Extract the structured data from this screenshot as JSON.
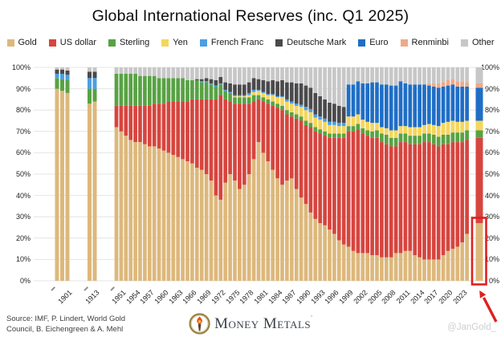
{
  "title": "Global International Reserves (inc. Q1 2025)",
  "footer": {
    "source_line1": "Source: IMF, P. Lindert, World Gold",
    "source_line2": "Council, B. Eichengreen & A. Mehl",
    "logo_text": "Money Metals",
    "logo_mark": "’",
    "handle": "@JanGold_"
  },
  "annotations": {
    "highlight_color": "#e01f1f",
    "highlight_target": "Q1 2025",
    "highlight_from_pct": 0,
    "highlight_to_pct": 29.5
  },
  "chart_data": {
    "type": "bar",
    "subtype": "stacked-100pct",
    "title": "Global International Reserves (inc. Q1 2025)",
    "xlabel": "",
    "ylabel": "",
    "ylim": [
      0,
      100
    ],
    "grid": true,
    "legend_position": "top",
    "y_ticks": [
      "0%",
      "10%",
      "20%",
      "30%",
      "40%",
      "50%",
      "60%",
      "70%",
      "80%",
      "90%",
      "100%"
    ],
    "x_tick_labels": [
      "1901",
      "1913",
      "1951",
      "1954",
      "1957",
      "1960",
      "1963",
      "1966",
      "1969",
      "1972",
      "1975",
      "1978",
      "1981",
      "1984",
      "1987",
      "1990",
      "1993",
      "1996",
      "1999",
      "2002",
      "2005",
      "2008",
      "2011",
      "2014",
      "2017",
      "2020",
      "2023"
    ],
    "x_minor_ticks": [
      "1899",
      "1912",
      "1950"
    ],
    "categories": [
      "1899",
      "1900",
      "1901",
      "1912",
      "1913",
      "1950",
      "1951",
      "1952",
      "1953",
      "1954",
      "1955",
      "1956",
      "1957",
      "1958",
      "1959",
      "1960",
      "1961",
      "1962",
      "1963",
      "1964",
      "1965",
      "1966",
      "1967",
      "1968",
      "1969",
      "1970",
      "1971",
      "1972",
      "1973",
      "1974",
      "1975",
      "1976",
      "1977",
      "1978",
      "1979",
      "1980",
      "1981",
      "1982",
      "1983",
      "1984",
      "1985",
      "1986",
      "1987",
      "1988",
      "1989",
      "1990",
      "1991",
      "1992",
      "1993",
      "1994",
      "1995",
      "1996",
      "1997",
      "1998",
      "1999",
      "2000",
      "2001",
      "2002",
      "2003",
      "2004",
      "2005",
      "2006",
      "2007",
      "2008",
      "2009",
      "2010",
      "2011",
      "2012",
      "2013",
      "2014",
      "2015",
      "2016",
      "2017",
      "2018",
      "2019",
      "2020",
      "2021",
      "2022",
      "2023",
      "2024",
      "Q1 2025"
    ],
    "series": [
      {
        "name": "Gold",
        "color": "#DDB87C",
        "values": [
          90,
          89,
          88,
          83,
          84,
          72,
          70,
          68,
          66,
          65,
          65,
          64,
          63,
          63,
          62,
          61,
          60,
          59,
          58,
          57,
          56,
          55,
          53,
          52,
          50,
          47,
          40,
          38,
          46,
          50,
          47,
          43,
          45,
          50,
          57,
          65,
          60,
          56,
          52,
          48,
          45,
          47,
          48,
          43,
          39,
          36,
          32,
          29,
          27,
          26,
          24,
          22,
          19,
          17,
          16,
          14,
          13,
          13,
          13,
          12,
          12,
          11,
          11,
          11,
          13,
          13,
          14,
          14,
          12,
          11,
          10,
          10,
          10,
          10,
          12,
          14,
          15,
          16,
          18,
          22,
          27
        ]
      },
      {
        "name": "US dollar",
        "color": "#D6453F",
        "values": [
          0,
          0,
          0,
          0,
          0,
          10,
          12,
          14,
          16,
          17,
          17,
          18,
          19,
          20,
          21,
          22,
          24,
          25,
          26,
          27,
          28,
          30,
          32,
          33,
          35,
          38,
          45,
          49,
          39,
          34,
          36,
          40,
          38,
          33,
          27,
          20,
          24,
          27,
          30,
          33,
          35,
          31,
          29,
          33,
          36,
          37,
          40,
          41,
          42,
          42,
          43,
          45,
          48,
          50,
          54,
          56,
          58,
          56,
          55,
          55,
          55,
          54,
          53,
          52,
          50,
          52,
          51,
          50,
          52,
          53,
          55,
          55,
          54,
          53,
          52,
          50,
          50,
          49,
          47,
          44,
          40
        ]
      },
      {
        "name": "Sterling",
        "color": "#58A244",
        "values": [
          5,
          5.5,
          6,
          7,
          6,
          15,
          15,
          15,
          15,
          15,
          14,
          14,
          14,
          13,
          12,
          12,
          11,
          11,
          11,
          11,
          10,
          9,
          9,
          8,
          8,
          7,
          6,
          5,
          4,
          4,
          3,
          3,
          3,
          3,
          3,
          2,
          2,
          2,
          2,
          2,
          2,
          2,
          2,
          2,
          2,
          2,
          2,
          2,
          2,
          2,
          2,
          2,
          2,
          2,
          2.5,
          2.5,
          2.5,
          2.5,
          2.5,
          3,
          3.5,
          4,
          4.5,
          4,
          4,
          4,
          4,
          4,
          4,
          4,
          4,
          4,
          4.5,
          4.5,
          4.5,
          4.5,
          4.5,
          4.5,
          4.5,
          4.5,
          3.5
        ]
      },
      {
        "name": "Yen",
        "color": "#F4D65C",
        "values": [
          0,
          0,
          0,
          0,
          0,
          0,
          0,
          0,
          0,
          0,
          0,
          0,
          0,
          0,
          0,
          0,
          0,
          0,
          0,
          0,
          0,
          0,
          0,
          0,
          0,
          0,
          0,
          0,
          0,
          0,
          0.5,
          0.5,
          0.5,
          1,
          1.5,
          2,
          2,
          2,
          3,
          3,
          4,
          4,
          4,
          4,
          4.5,
          5,
          5,
          4.5,
          4.5,
          4.5,
          4,
          4,
          3.5,
          3.5,
          4.5,
          4.5,
          4.5,
          4,
          4,
          4,
          3.5,
          3,
          3,
          3.5,
          3.5,
          3.5,
          3.5,
          4,
          4,
          4,
          4,
          4.5,
          4.5,
          5,
          5.5,
          6,
          5.5,
          5,
          5,
          4.5,
          4.5
        ]
      },
      {
        "name": "French Franc",
        "color": "#4B9FE3",
        "values": [
          2,
          2.5,
          2.5,
          5,
          5,
          0,
          0,
          0,
          0,
          0,
          0,
          0,
          0,
          0,
          0,
          0,
          0,
          0,
          0,
          0,
          0,
          0,
          0,
          0.5,
          0.5,
          0.5,
          0.5,
          0.5,
          0.5,
          0.5,
          0.5,
          0.5,
          0.5,
          1,
          1,
          0.5,
          0.5,
          0.5,
          0.5,
          0.5,
          0.5,
          1,
          1,
          1,
          1,
          1.5,
          1.5,
          1.5,
          1.5,
          1.5,
          1.5,
          1.5,
          1.5,
          1.5,
          0,
          0,
          0,
          0,
          0,
          0,
          0,
          0,
          0,
          0,
          0,
          0,
          0,
          0,
          0,
          0,
          0,
          0,
          0,
          0,
          0,
          0,
          0,
          0,
          0,
          0,
          0
        ]
      },
      {
        "name": "Deutsche Mark",
        "color": "#4A4A4C",
        "values": [
          2,
          2,
          2,
          3,
          3,
          0,
          0,
          0,
          0,
          0,
          0,
          0,
          0,
          0,
          0,
          0,
          0,
          0,
          0,
          0,
          0,
          0,
          0.5,
          1,
          1.5,
          2,
          2.5,
          3,
          3.5,
          4,
          5,
          5,
          5,
          5,
          5.5,
          5,
          5.5,
          6,
          6.5,
          7,
          7.5,
          8,
          9,
          9.5,
          10,
          10,
          10,
          10,
          9.5,
          9,
          9,
          8.5,
          8,
          7.5,
          0,
          0,
          0,
          0,
          0,
          0,
          0,
          0,
          0,
          0,
          0,
          0,
          0,
          0,
          0,
          0,
          0,
          0,
          0,
          0,
          0,
          0,
          0,
          0,
          0,
          0,
          0
        ]
      },
      {
        "name": "Euro",
        "color": "#1F6EC6",
        "values": [
          0,
          0,
          0,
          0,
          0,
          0,
          0,
          0,
          0,
          0,
          0,
          0,
          0,
          0,
          0,
          0,
          0,
          0,
          0,
          0,
          0,
          0,
          0,
          0,
          0,
          0,
          0,
          0,
          0,
          0,
          0,
          0,
          0,
          0,
          0,
          0,
          0,
          0,
          0,
          0,
          0,
          0,
          0,
          0,
          0,
          0,
          0,
          0,
          0,
          0,
          0,
          0,
          0,
          0,
          15,
          15,
          15.5,
          17,
          18,
          19,
          19,
          20,
          20.5,
          21,
          21,
          21,
          20,
          20,
          20,
          20,
          19,
          18,
          18,
          18,
          17,
          17,
          17,
          16.5,
          16.5,
          16,
          15.5
        ]
      },
      {
        "name": "Renminbi",
        "color": "#F0A988",
        "values": [
          0,
          0,
          0,
          0,
          0,
          0,
          0,
          0,
          0,
          0,
          0,
          0,
          0,
          0,
          0,
          0,
          0,
          0,
          0,
          0,
          0,
          0,
          0,
          0,
          0,
          0,
          0,
          0,
          0,
          0,
          0,
          0,
          0,
          0,
          0,
          0,
          0,
          0,
          0,
          0,
          0,
          0,
          0,
          0,
          0,
          0,
          0,
          0,
          0,
          0,
          0,
          0,
          0,
          0,
          0,
          0,
          0,
          0,
          0,
          0,
          0,
          0,
          0,
          0,
          0,
          0,
          0,
          0,
          0,
          0,
          0,
          1,
          1.5,
          2,
          2,
          2.5,
          2.5,
          2.5,
          2.5,
          2,
          2
        ]
      },
      {
        "name": "Other",
        "color": "#C7C7C7",
        "values": [
          1,
          1,
          1.5,
          2,
          2,
          3,
          3,
          3,
          3,
          3,
          4,
          4,
          4,
          4,
          5,
          5,
          5,
          5,
          5,
          5,
          6,
          6,
          5.5,
          5.5,
          5,
          5.5,
          6,
          4.5,
          7,
          7.5,
          8,
          8,
          8,
          7,
          5,
          5.5,
          6,
          6.5,
          6,
          6.5,
          6,
          7,
          7,
          7.5,
          7.5,
          8.5,
          9.5,
          12,
          13.5,
          15,
          16.5,
          17,
          18,
          18.5,
          8,
          8,
          6.5,
          7.5,
          7.5,
          7,
          7,
          8,
          8,
          8.5,
          8.5,
          6.5,
          7.5,
          8,
          8,
          8,
          8,
          7.5,
          7.5,
          7.5,
          7,
          6,
          5.5,
          6.5,
          6.5,
          7,
          7.5
        ]
      }
    ]
  }
}
